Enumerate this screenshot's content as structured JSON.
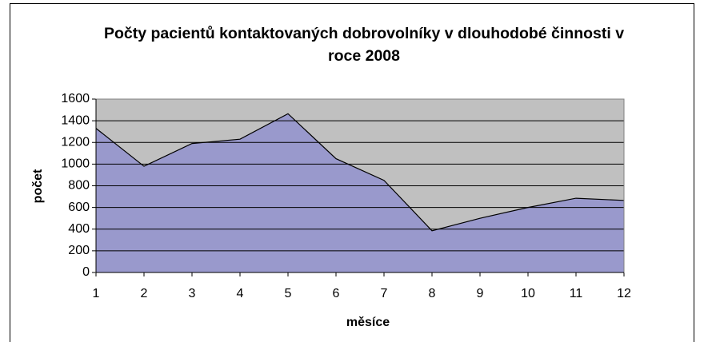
{
  "chart_data": {
    "type": "area",
    "title": "Počty pacientů kontaktovaných dobrovolníky v dlouhodobé činnosti v roce 2008",
    "x_label": "měsíce",
    "y_label": "počet",
    "x": [
      1,
      2,
      3,
      4,
      5,
      6,
      7,
      8,
      9,
      10,
      11,
      12
    ],
    "values": [
      1330,
      980,
      1190,
      1230,
      1465,
      1050,
      850,
      385,
      500,
      600,
      685,
      665
    ],
    "color": "#9999cc",
    "plot_background": "#c0c0c0",
    "xlim": [
      1,
      12
    ],
    "xticks": [
      1,
      2,
      3,
      4,
      5,
      6,
      7,
      8,
      9,
      10,
      11,
      12
    ],
    "ylim": [
      0,
      1600
    ],
    "yticks": [
      0,
      200,
      400,
      600,
      800,
      1000,
      1200,
      1400,
      1600
    ],
    "grid": true
  }
}
